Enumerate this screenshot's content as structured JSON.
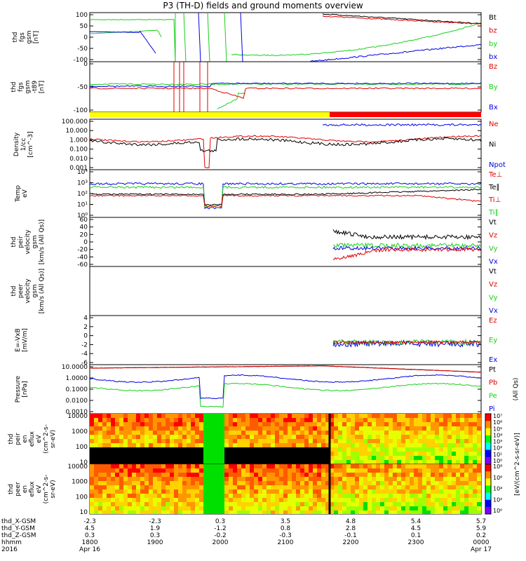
{
  "title": "P3 (TH-D) fields and ground moments overview",
  "colors": {
    "black": "#000000",
    "red": "#e00000",
    "green": "#18d018",
    "blue": "#0000e6",
    "yellow": "#ffff00",
    "mode_red": "#ff0000"
  },
  "chart_data": [
    {
      "type": "line",
      "id": "fgs",
      "ylabel": [
        "thd",
        "fgs",
        "gsm",
        "[nT]"
      ],
      "ylim": [
        -100,
        100
      ],
      "yticks": [
        100,
        50,
        0,
        -50,
        -100
      ],
      "series": [
        {
          "name": "Bt",
          "color": "black"
        },
        {
          "name": "bz",
          "color": "red"
        },
        {
          "name": "by",
          "color": "green"
        },
        {
          "name": "bx",
          "color": "blue"
        }
      ]
    },
    {
      "type": "line",
      "id": "fgs_t89",
      "ylabel": [
        "thd",
        "fgs",
        "gsm",
        "-t89",
        "[nT]"
      ],
      "ylim": [
        -125,
        25
      ],
      "yticks": [
        0,
        -50,
        -100
      ],
      "series": [
        {
          "name": "Bz",
          "color": "red"
        },
        {
          "name": "By",
          "color": "green"
        },
        {
          "name": "Bx",
          "color": "blue"
        }
      ]
    },
    {
      "type": "line",
      "id": "density",
      "ylabel": [
        "Density",
        "1/cc",
        "[cm^-3]"
      ],
      "log": true,
      "ylim": [
        0.001,
        100
      ],
      "yticks": [
        "100.000",
        "10.000",
        "1.000",
        "0.100",
        "0.010",
        "0.001"
      ],
      "series": [
        {
          "name": "Ne",
          "color": "red"
        },
        {
          "name": "Ni",
          "color": "black"
        },
        {
          "name": "Npot",
          "color": "blue"
        }
      ]
    },
    {
      "type": "line",
      "id": "temp",
      "ylabel": [
        "Temp",
        "eV"
      ],
      "log": true,
      "yticks": [
        "10⁴",
        "10³",
        "10²",
        "10¹",
        "10⁰"
      ],
      "series": [
        {
          "name": "Te⊥",
          "color": "red"
        },
        {
          "name": "Te∥",
          "color": "black"
        },
        {
          "name": "Ti⊥",
          "color": "red"
        },
        {
          "name": "Ti∥",
          "color": "green"
        }
      ]
    },
    {
      "type": "line",
      "id": "peir_vel",
      "ylabel": [
        "thd",
        "peir",
        "velocity",
        "gsm",
        "[km/s (All Qs)]"
      ],
      "ylim": [
        -60,
        60
      ],
      "yticks": [
        60,
        40,
        20,
        0,
        -20,
        -40,
        -60
      ],
      "series": [
        {
          "name": "Vt",
          "color": "black"
        },
        {
          "name": "Vz",
          "color": "red"
        },
        {
          "name": "Vy",
          "color": "green"
        },
        {
          "name": "Vx",
          "color": "blue"
        }
      ]
    },
    {
      "type": "line",
      "id": "peer_vel",
      "ylabel": [
        "thd",
        "peer",
        "velocity",
        "gsm",
        "[km/s (All Qs)]"
      ],
      "series": [
        {
          "name": "Vt",
          "color": "black"
        },
        {
          "name": "Vz",
          "color": "red"
        },
        {
          "name": "Vy",
          "color": "green"
        },
        {
          "name": "Vx",
          "color": "blue"
        }
      ]
    },
    {
      "type": "line",
      "id": "efield",
      "ylabel": [
        "E=-VxB",
        "[mV/m]"
      ],
      "ylim": [
        -6,
        4
      ],
      "yticks": [
        4,
        2,
        0,
        -2,
        -4,
        -6
      ],
      "series": [
        {
          "name": "Ez",
          "color": "red"
        },
        {
          "name": "Ey",
          "color": "green"
        },
        {
          "name": "Ex",
          "color": "blue"
        }
      ]
    },
    {
      "type": "line",
      "id": "pressure",
      "ylabel": [
        "Pressure",
        "[nPa]"
      ],
      "log": true,
      "yticks": [
        "10.0000",
        "1.0000",
        "0.1000",
        "0.0100",
        "0.0010"
      ],
      "series": [
        {
          "name": "Pt",
          "color": "black"
        },
        {
          "name": "Pb",
          "color": "red"
        },
        {
          "name": "Pe",
          "color": "green"
        },
        {
          "name": "Pi",
          "color": "blue"
        }
      ],
      "right_label": "(All Qs)"
    },
    {
      "type": "heatmap",
      "id": "peir_spec",
      "ylabel": [
        "thd",
        "peir",
        "en",
        "eflux",
        "eV",
        "(cm^2-s-",
        "sr-eV)"
      ],
      "yticks": [
        "10000",
        "1000",
        "100",
        "10"
      ]
    },
    {
      "type": "heatmap",
      "id": "peer_spec",
      "ylabel": [
        "thd",
        "peer",
        "en",
        "eflux",
        "eV",
        "(cm^2-s-",
        "sr-eV)"
      ],
      "yticks": [
        "10000",
        "1000",
        "100",
        "10"
      ]
    }
  ],
  "colorbar": {
    "label": "[eV/(cm^2-s-sr-eV)]",
    "ticks_top": [
      "10⁷",
      "10⁶",
      "10⁵",
      "10⁴",
      "10³",
      "10²",
      "10¹",
      "10⁰"
    ],
    "ticks_bottom": [
      "10⁸",
      "10⁶",
      "10⁴",
      "10²",
      "10⁰"
    ]
  },
  "xaxis": {
    "rows": [
      {
        "label": "thd_X-GSM",
        "values": [
          "-2.3",
          "-2.3",
          "0.3",
          "3.5",
          "4.8",
          "5.4",
          "5.7"
        ]
      },
      {
        "label": "thd_Y-GSM",
        "values": [
          "4.5",
          "1.9",
          "-1.2",
          "0.8",
          "2.8",
          "4.5",
          "5.9"
        ]
      },
      {
        "label": "thd_Z-GSM",
        "values": [
          "0.3",
          "0.3",
          "-0.2",
          "-0.3",
          "-0.1",
          "0.1",
          "0.2"
        ]
      },
      {
        "label": "hhmm",
        "values": [
          "1800",
          "1900",
          "2000",
          "2100",
          "2200",
          "2300",
          "0000"
        ]
      }
    ],
    "year": "2016",
    "dates": [
      "Apr 16",
      "Apr 17"
    ]
  }
}
